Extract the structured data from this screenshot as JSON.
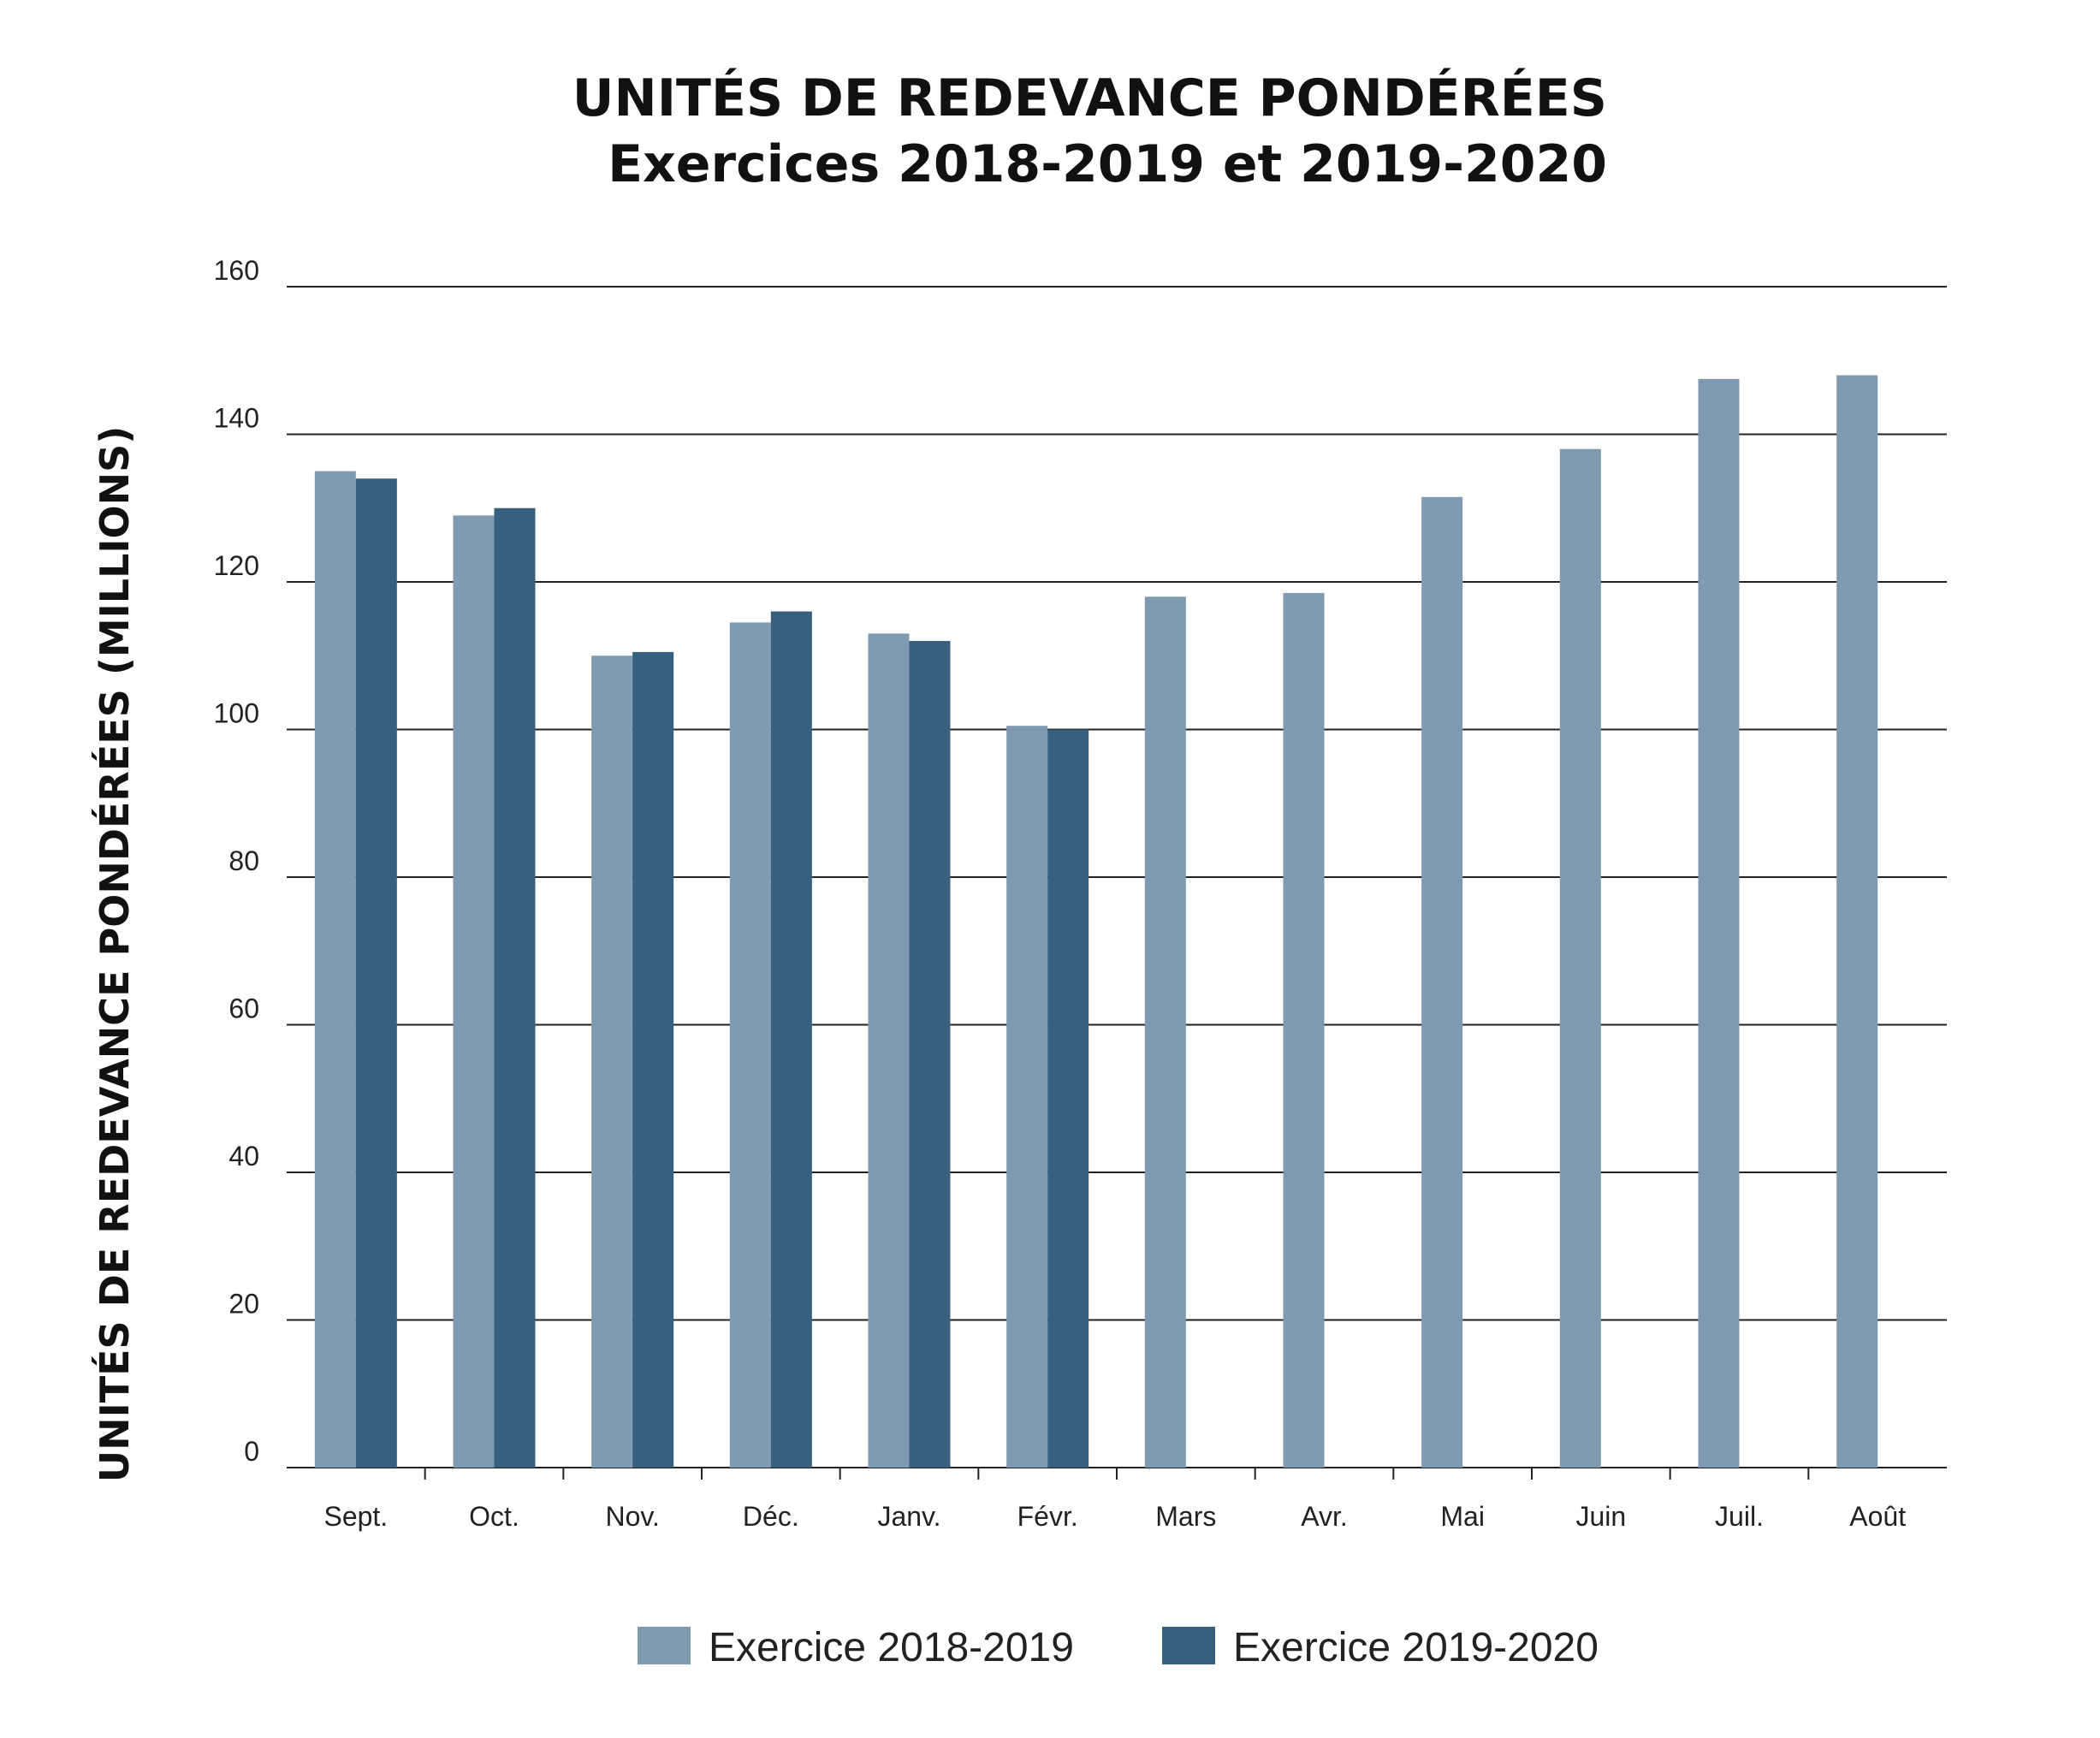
{
  "chart_data": {
    "type": "bar",
    "title": "UNITÉS DE REDEVANCE PONDÉRÉES",
    "subtitle": "Exercices 2018-2019 et 2019-2020",
    "xlabel": "",
    "ylabel": "UNITÉS DE REDEVANCE PONDÉRÉES (MILLIONS)",
    "ylim": [
      0,
      160
    ],
    "yticks": [
      0,
      20,
      40,
      60,
      80,
      100,
      120,
      140,
      160
    ],
    "grid": true,
    "legend_position": "bottom",
    "categories": [
      "Sept.",
      "Oct.",
      "Nov.",
      "Déc.",
      "Janv.",
      "Févr.",
      "Mars",
      "Avr.",
      "Mai",
      "Juin",
      "Juil.",
      "Août"
    ],
    "series": [
      {
        "name": "Exercice 2018-2019",
        "color": "#7f9ab1",
        "values": [
          135,
          129,
          110,
          114.5,
          113,
          100.5,
          118,
          118.5,
          131.5,
          138,
          147.5,
          148
        ]
      },
      {
        "name": "Exercice 2019-2020",
        "color": "#36607d",
        "values": [
          134,
          130,
          110.5,
          116,
          112,
          100,
          null,
          null,
          null,
          null,
          null,
          null
        ]
      }
    ]
  }
}
